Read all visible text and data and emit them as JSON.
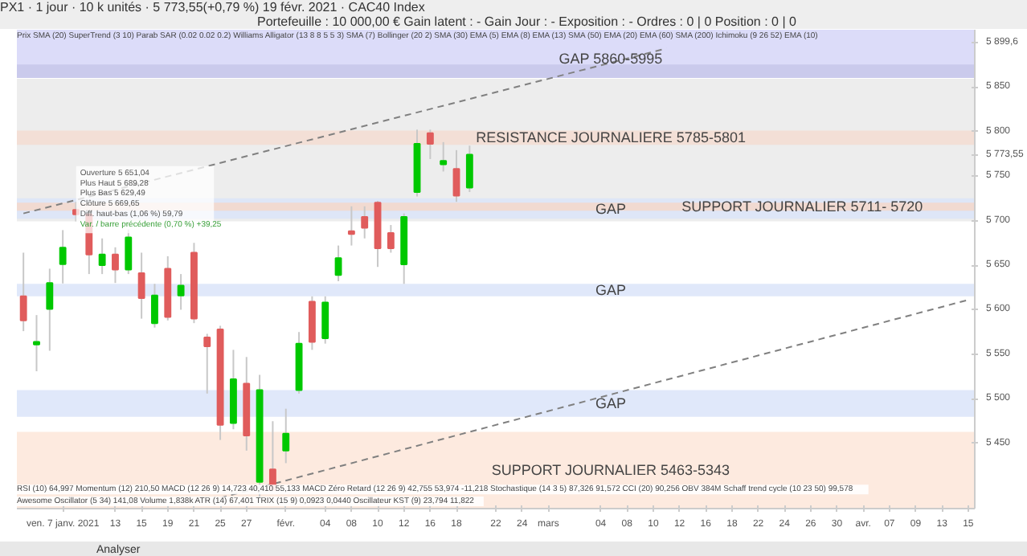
{
  "chart_data": {
    "type": "candlestick",
    "categories": [
      null,
      null,
      null,
      "ven. 7 janv. 2021",
      null,
      null,
      null,
      "13",
      null,
      "15",
      null,
      "19",
      null,
      "21",
      null,
      "25",
      null,
      "27",
      null,
      null,
      "févr.",
      null,
      null,
      "04",
      null,
      "08",
      null,
      "10",
      null,
      "12",
      null,
      "16",
      null,
      "18",
      null,
      null,
      "22",
      null,
      "24",
      null,
      "mars",
      null,
      null,
      null,
      "04",
      null,
      "08",
      null,
      "10",
      null,
      "12",
      null,
      "16",
      null,
      "18",
      null,
      "22",
      null,
      "24",
      null,
      "26",
      null,
      "30",
      null,
      "avr.",
      null,
      "07",
      null,
      "09",
      null,
      "13",
      null,
      "15"
    ],
    "ohlc": [
      [
        5615,
        5664,
        5576,
        5588
      ],
      [
        5561,
        5594,
        5531,
        5564
      ],
      [
        5601,
        5646,
        5554,
        5630
      ],
      [
        5651.04,
        5689.28,
        5629.49,
        5669.65
      ],
      [
        5712,
        5721,
        5699,
        5707
      ],
      [
        5707,
        5710,
        5640,
        5662
      ],
      [
        5650,
        5680,
        5640,
        5662
      ],
      [
        5662,
        5670,
        5630,
        5645
      ],
      [
        5645,
        5690,
        5640,
        5681
      ],
      [
        5641,
        5664,
        5590,
        5613
      ],
      [
        5585,
        5629,
        5580,
        5616
      ],
      [
        5646,
        5660,
        5588,
        5592
      ],
      [
        5616,
        5640,
        5600,
        5627
      ],
      [
        5664,
        5675,
        5585,
        5590
      ],
      [
        5569,
        5573,
        5506,
        5559
      ],
      [
        5578,
        5582,
        5454,
        5471
      ],
      [
        5473,
        5555,
        5466,
        5522
      ],
      [
        5517,
        5547,
        5442,
        5459
      ],
      [
        5407,
        5527,
        5389,
        5510
      ],
      [
        5421,
        5475,
        5396,
        5398
      ],
      [
        5442,
        5489,
        5428,
        5461
      ],
      [
        5510,
        5575,
        5506,
        5562
      ],
      [
        5609,
        5615,
        5555,
        5564
      ],
      [
        5568,
        5615,
        5562,
        5608
      ],
      [
        5639,
        5672,
        5632,
        5658
      ],
      [
        5688,
        5716,
        5672,
        5685
      ],
      [
        5704,
        5716,
        5680,
        5692
      ],
      [
        5720,
        5722,
        5648,
        5669
      ],
      [
        5686,
        5695,
        5664,
        5669
      ],
      [
        5651,
        5708,
        5629,
        5704
      ],
      [
        5732,
        5802,
        5727,
        5786
      ],
      [
        5798,
        5802,
        5769,
        5786
      ],
      [
        5763,
        5788,
        5755,
        5767
      ],
      [
        5758,
        5779,
        5721,
        5728
      ],
      [
        5737,
        5784,
        5732,
        5774
      ],
      null,
      null,
      null,
      null,
      null,
      null,
      null,
      null,
      null,
      null,
      null,
      null,
      null,
      null,
      null,
      null,
      null,
      null,
      null,
      null,
      null,
      null,
      null,
      null,
      null,
      null,
      null,
      null,
      null,
      null,
      null,
      null,
      null,
      null,
      null,
      null,
      null,
      null
    ],
    "colors": [
      "#e05c5c",
      "#00c800",
      "#00c800",
      "#00c800",
      "#e05c5c",
      "#e05c5c",
      "#00c800",
      "#e05c5c",
      "#00c800",
      "#e05c5c",
      "#00c800",
      "#e05c5c",
      "#00c800",
      "#e05c5c",
      "#e05c5c",
      "#e05c5c",
      "#00c800",
      "#e05c5c",
      "#00c800",
      "#e05c5c",
      "#00c800",
      "#00c800",
      "#e05c5c",
      "#00c800",
      "#00c800",
      "#e05c5c",
      "#e05c5c",
      "#e05c5c",
      "#e05c5c",
      "#00c800",
      "#00c800",
      "#e05c5c",
      "#00c800",
      "#e05c5c",
      "#00c800",
      null,
      null,
      null,
      null,
      null,
      null,
      null,
      null,
      null,
      null,
      null,
      null,
      null,
      null,
      null,
      null,
      null,
      null,
      null,
      null,
      null,
      null,
      null,
      null,
      null,
      null,
      null,
      null,
      null,
      null,
      null,
      null,
      null,
      null,
      null,
      null,
      null,
      null
    ],
    "series": [
      {
        "type": "line",
        "values": [
          5708,
          null,
          null,
          null,
          null,
          null,
          null,
          null,
          null,
          null,
          null,
          null,
          null,
          null,
          null,
          null,
          null,
          null,
          null,
          null,
          null,
          null,
          null,
          null,
          null,
          null,
          null,
          null,
          null,
          null,
          null,
          null,
          null,
          null,
          null,
          null,
          null,
          null,
          null,
          null,
          null,
          null,
          null,
          null,
          null,
          null,
          null,
          null,
          null,
          5893,
          null,
          null,
          null,
          null,
          null,
          null,
          null,
          null,
          null,
          null,
          null,
          null,
          null,
          null,
          null,
          null,
          null,
          null,
          null,
          null,
          null,
          null,
          null
        ],
        "color": "#808080",
        "line_style": "dashed"
      },
      {
        "type": "line",
        "values": [
          null,
          null,
          null,
          null,
          null,
          null,
          null,
          null,
          null,
          null,
          null,
          null,
          null,
          null,
          null,
          5389,
          null,
          null,
          null,
          null,
          null,
          null,
          null,
          null,
          null,
          null,
          null,
          null,
          null,
          null,
          null,
          null,
          null,
          null,
          null,
          null,
          null,
          null,
          null,
          null,
          null,
          null,
          null,
          null,
          null,
          null,
          null,
          null,
          null,
          null,
          null,
          null,
          null,
          null,
          null,
          null,
          null,
          null,
          null,
          null,
          null,
          null,
          null,
          null,
          null,
          null,
          null,
          null,
          null,
          null,
          null,
          null,
          5611
        ],
        "color": "#808080",
        "line_style": "dashed"
      }
    ],
    "ylim": [
      5377,
      5914
    ],
    "yticks": [
      {
        "value": 5450,
        "label": "5 450"
      },
      {
        "value": 5500,
        "label": "5 500"
      },
      {
        "value": 5550,
        "label": "5 550"
      },
      {
        "value": 5600,
        "label": "5 600"
      },
      {
        "value": 5650,
        "label": "5 650"
      },
      {
        "value": 5700,
        "label": "5 700"
      },
      {
        "value": 5750,
        "label": "5 750"
      },
      {
        "value": 5773.55,
        "label": "5 773,55"
      },
      {
        "value": 5800,
        "label": "5 800"
      },
      {
        "value": 5850,
        "label": "5 850"
      },
      {
        "value": 5899.6,
        "label": "5 899,6"
      }
    ],
    "bands": [
      {
        "axis": "y",
        "from": 5699,
        "to": 5859,
        "color": "#ebebeb"
      },
      {
        "axis": "y",
        "from": 5860,
        "to": 5995,
        "color": "#d8d8f8",
        "label": "GAP 5860-5995"
      },
      {
        "axis": "y",
        "from": 5860,
        "to": 5875,
        "color": "#c8c8ea"
      },
      {
        "axis": "y",
        "from": 5785,
        "to": 5801,
        "color": "#f3ddd3",
        "label": "RESISTANCE JOURNALIERE 5785-5801"
      },
      {
        "axis": "y",
        "from": 5702,
        "to": 5725,
        "color": "#dbe4f7",
        "label": "GAP"
      },
      {
        "axis": "y",
        "from": 5711,
        "to": 5720,
        "color": "#f3d8cc",
        "label": "SUPPORT JOURNALIER 5711- 5720"
      },
      {
        "axis": "y",
        "from": 5615,
        "to": 5629,
        "color": "#dde6fa",
        "label": "GAP"
      },
      {
        "axis": "y",
        "from": 5480,
        "to": 5510,
        "color": "#dde6fa",
        "label": "GAP"
      },
      {
        "axis": "y",
        "from": 5343,
        "to": 5463,
        "color": "#fde8dc",
        "label": "SUPPORT JOURNALIER 5463-5343"
      }
    ],
    "annotations": [
      "PX1 · 1 jour · 10 k unités · 5 773,55(+0,79 %) 19 févr. 2021 · CAC40 Index",
      "Portefeuille : 10 000,00 €      Gain latent : -      Gain Jour : -      Exposition : -      Ordres : 0 | 0      Position : 0 | 0",
      "Prix  SMA (20)  SuperTrend (3 10)  Parab SAR (0.02 0.02 0.2)  Williams Alligator (13 8 8 5 5 3)  SMA (7)  Bollinger (20 2)  SMA (30)  EMA (5)  EMA (8)  EMA (13)  SMA (50)  EMA (20)  EMA (60)  SMA (200)  Ichimoku (9 26 52)  EMA (10)",
      "Ouverture 5 651,04",
      "Plus Haut 5 689,28",
      "Plus Bas 5 629,49",
      "Clôture 5 669,65",
      "Diff. haut-bas (1,06 %) 59,79",
      "Var. / barre précédente (0,70 %) +39,25",
      "RSI (10) 64,997  Momentum (12) 210,50  MACD (12 26 9) 14,723 40,410 55,133  MACD Zéro Retard (12 26 9) 42,755 53,974 -11,218  Stochastique (14 3 5) 87,326 91,572  CCI (20) 90,256  OBV 384M  Schaff trend cycle (10 23 50) 99,578",
      "Awesome Oscillator (5 34) 141,08  Volume 1,838k  ATR (14) 67,401  TRIX (15 9) 0,0923 0,0440  Oscillateur KST (9) 23,794 11,822",
      "Analyser"
    ]
  }
}
